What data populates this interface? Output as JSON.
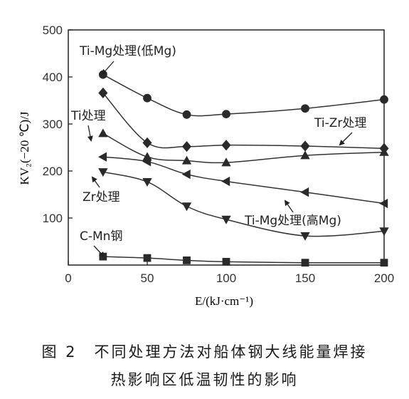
{
  "chart_data": {
    "type": "line",
    "xlabel": "E/(kJ·cm⁻¹)",
    "ylabel": "KV₂(−20 ℃)/J",
    "xlim": [
      0,
      200
    ],
    "ylim": [
      0,
      500
    ],
    "x_ticks": [
      0,
      50,
      100,
      150,
      200
    ],
    "y_ticks": [
      100,
      200,
      300,
      400,
      500
    ],
    "grid": false,
    "series": [
      {
        "name": "Ti-Mg处理(低Mg)",
        "marker": "circle",
        "x": [
          22,
          50,
          75,
          100,
          150,
          200
        ],
        "y": [
          405,
          355,
          320,
          321,
          333,
          352
        ]
      },
      {
        "name": "Ti-Zr处理",
        "marker": "diamond",
        "x": [
          22,
          50,
          75,
          100,
          150,
          200
        ],
        "y": [
          366,
          260,
          252,
          255,
          253,
          248
        ]
      },
      {
        "name": "Ti处理",
        "marker": "triangle-up",
        "x": [
          22,
          50,
          75,
          100,
          150,
          200
        ],
        "y": [
          280,
          230,
          222,
          218,
          233,
          240
        ]
      },
      {
        "name": "",
        "marker": "triangle-left",
        "x": [
          22,
          50,
          75,
          100,
          150,
          200
        ],
        "y": [
          230,
          220,
          193,
          178,
          155,
          131
        ]
      },
      {
        "name": "Zr处理",
        "marker": "triangle-down",
        "x": [
          22,
          50,
          75,
          100,
          150,
          200
        ],
        "y": [
          198,
          177,
          125,
          97,
          62,
          72
        ]
      },
      {
        "name": "C-Mn钢",
        "marker": "square",
        "x": [
          22,
          50,
          75,
          100,
          150,
          200
        ],
        "y": [
          18,
          15,
          10,
          7,
          5,
          5
        ]
      }
    ],
    "annotations": [
      "Ti-Mg处理(低Mg)",
      "Ti-Zr处理",
      "Ti处理",
      "Zr处理",
      "Ti-Mg处理(高Mg)",
      "C-Mn钢"
    ]
  },
  "caption": {
    "line1": "图 2　不同处理方法对船体钢大线能量焊接",
    "line2": "热影响区低温韧性的影响"
  }
}
